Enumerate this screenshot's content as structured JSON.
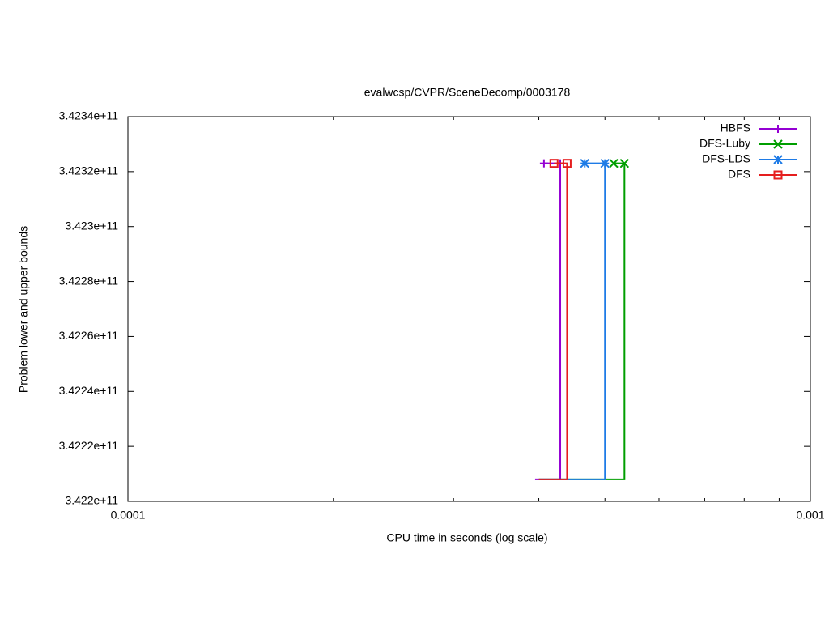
{
  "chart_data": {
    "type": "line",
    "title": "evalwcsp/CVPR/SceneDecomp/0003178",
    "xlabel": "CPU time in seconds (log scale)",
    "ylabel": "Problem lower and upper bounds",
    "xscale": "log",
    "xlim": [
      0.0001,
      0.001
    ],
    "xticks": [
      0.0001,
      0.001
    ],
    "xminorticks": [
      0.0002,
      0.0003,
      0.0004,
      0.0005,
      0.0006,
      0.0007,
      0.0008,
      0.0009
    ],
    "ylim": [
      342200000000,
      342340000000
    ],
    "yticks": [
      {
        "value": 342200000000,
        "label": "3.422e+11"
      },
      {
        "value": 342220000000,
        "label": "3.4222e+11"
      },
      {
        "value": 342240000000,
        "label": "3.4224e+11"
      },
      {
        "value": 342260000000,
        "label": "3.4226e+11"
      },
      {
        "value": 342280000000,
        "label": "3.4228e+11"
      },
      {
        "value": 342300000000,
        "label": "3.423e+11"
      },
      {
        "value": 342320000000,
        "label": "3.4232e+11"
      },
      {
        "value": 342340000000,
        "label": "3.4234e+11"
      }
    ],
    "legend": "top-right",
    "series": [
      {
        "name": "HBFS",
        "color": "#9400d3",
        "marker": "plus",
        "x": [
          0.000395,
          0.00043,
          0.00043,
          0.000407
        ],
        "values": [
          342208000000,
          342208000000,
          342323000000,
          342323000000
        ]
      },
      {
        "name": "DFS-Luby",
        "color": "#009e00",
        "marker": "cross",
        "x": [
          0.0004,
          0.000534,
          0.000534,
          0.000515
        ],
        "values": [
          342208000000,
          342208000000,
          342323000000,
          342323000000
        ]
      },
      {
        "name": "DFS-LDS",
        "color": "#1e7be6",
        "marker": "star",
        "x": [
          0.0004,
          0.0005,
          0.0005,
          0.000467
        ],
        "values": [
          342208000000,
          342208000000,
          342323000000,
          342323000000
        ]
      },
      {
        "name": "DFS",
        "color": "#e51e1e",
        "marker": "square",
        "x": [
          0.0004,
          0.00044,
          0.00044,
          0.000421
        ],
        "values": [
          342208000000,
          342208000000,
          342323000000,
          342323000000
        ]
      }
    ]
  }
}
